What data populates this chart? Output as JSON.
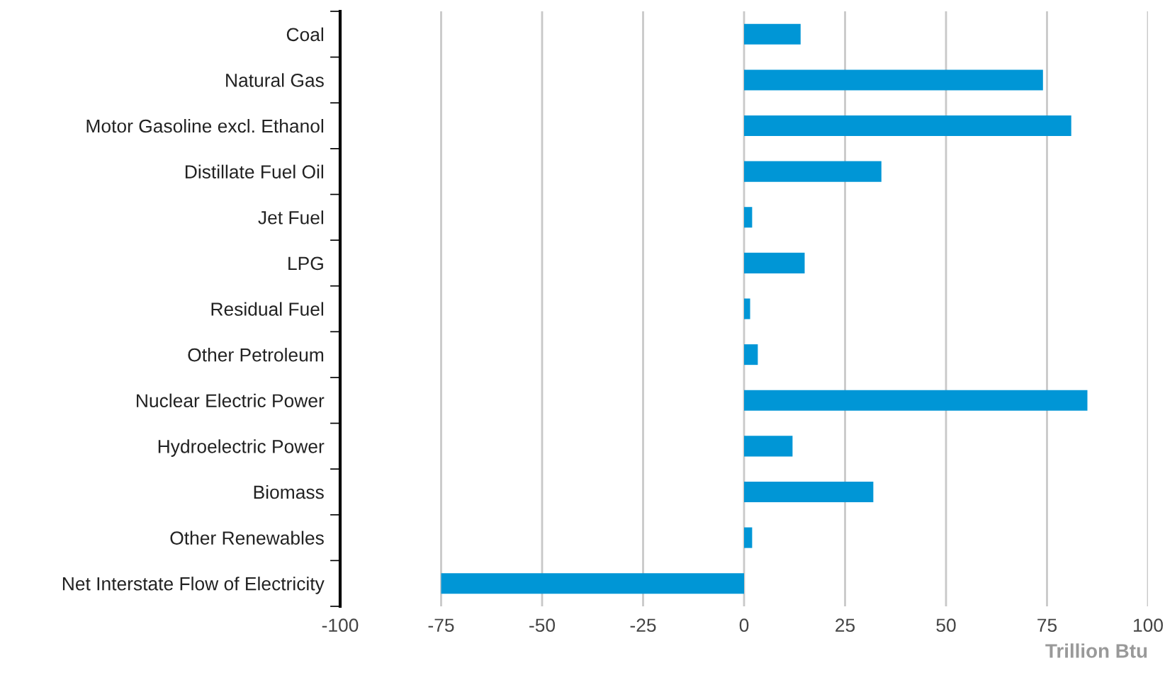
{
  "chart_data": {
    "type": "bar",
    "orientation": "horizontal",
    "xlabel": "Trillion Btu",
    "categories": [
      "Coal",
      "Natural Gas",
      "Motor Gasoline excl. Ethanol",
      "Distillate Fuel Oil",
      "Jet Fuel",
      "LPG",
      "Residual Fuel",
      "Other Petroleum",
      "Nuclear Electric Power",
      "Hydroelectric Power",
      "Biomass",
      "Other Renewables",
      "Net Interstate Flow of Electricity"
    ],
    "values": [
      14,
      74,
      81,
      34,
      2,
      15,
      1.5,
      3.4,
      85,
      12,
      32,
      2,
      -75
    ],
    "color": "#0096d6",
    "xlim": [
      -100,
      100
    ],
    "xticks": [
      -100,
      -75,
      -50,
      -25,
      0,
      25,
      50,
      75,
      100
    ],
    "grid": "x",
    "legend": false
  }
}
